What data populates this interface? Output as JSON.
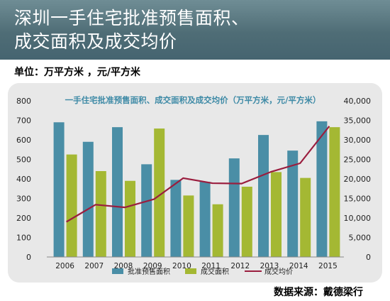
{
  "banner": {
    "title_line1": "深圳一手住宅批准预售面积、",
    "title_line2": "成交面积及成交均价"
  },
  "unit_label": "单位：万平方米 ，元/平方米",
  "source_label": "数据来源：戴德梁行",
  "colors": {
    "banner": "#4f6d76",
    "approved_bar": "#4a8ea6",
    "transacted_bar": "#a4b833",
    "price_line": "#9a1d3e",
    "chart_title": "#3e8aa6",
    "panel": "#e8e8e8"
  },
  "chart_data": {
    "type": "bar",
    "title": "一手住宅批准预售面积、成交面积及成交均价（万平方米，元/平方米）",
    "categories": [
      "2006",
      "2007",
      "2008",
      "2009",
      "2010",
      "2011",
      "2012",
      "2013",
      "2014",
      "2015"
    ],
    "ylim": [
      0,
      800
    ],
    "y_ticks": [
      "0",
      "100",
      "200",
      "300",
      "400",
      "500",
      "600",
      "700",
      "800"
    ],
    "y2lim": [
      0,
      40000
    ],
    "y2_ticks": [
      "0",
      "5,000",
      "10,000",
      "15,000",
      "20,000",
      "25,000",
      "30,000",
      "35,000",
      "40,000"
    ],
    "grid": false,
    "legend_position": "bottom",
    "series": [
      {
        "name": "批准预售面积",
        "kind": "bar",
        "axis": "left",
        "values": [
          690,
          590,
          665,
          475,
          395,
          385,
          505,
          625,
          545,
          695
        ]
      },
      {
        "name": "成交面积",
        "kind": "bar",
        "axis": "left",
        "values": [
          525,
          440,
          390,
          658,
          315,
          270,
          360,
          435,
          405,
          665
        ]
      },
      {
        "name": "成交均价",
        "kind": "line",
        "axis": "right",
        "values": [
          9000,
          13400,
          12700,
          14800,
          20200,
          18900,
          18800,
          21800,
          24000,
          33500
        ]
      }
    ]
  }
}
